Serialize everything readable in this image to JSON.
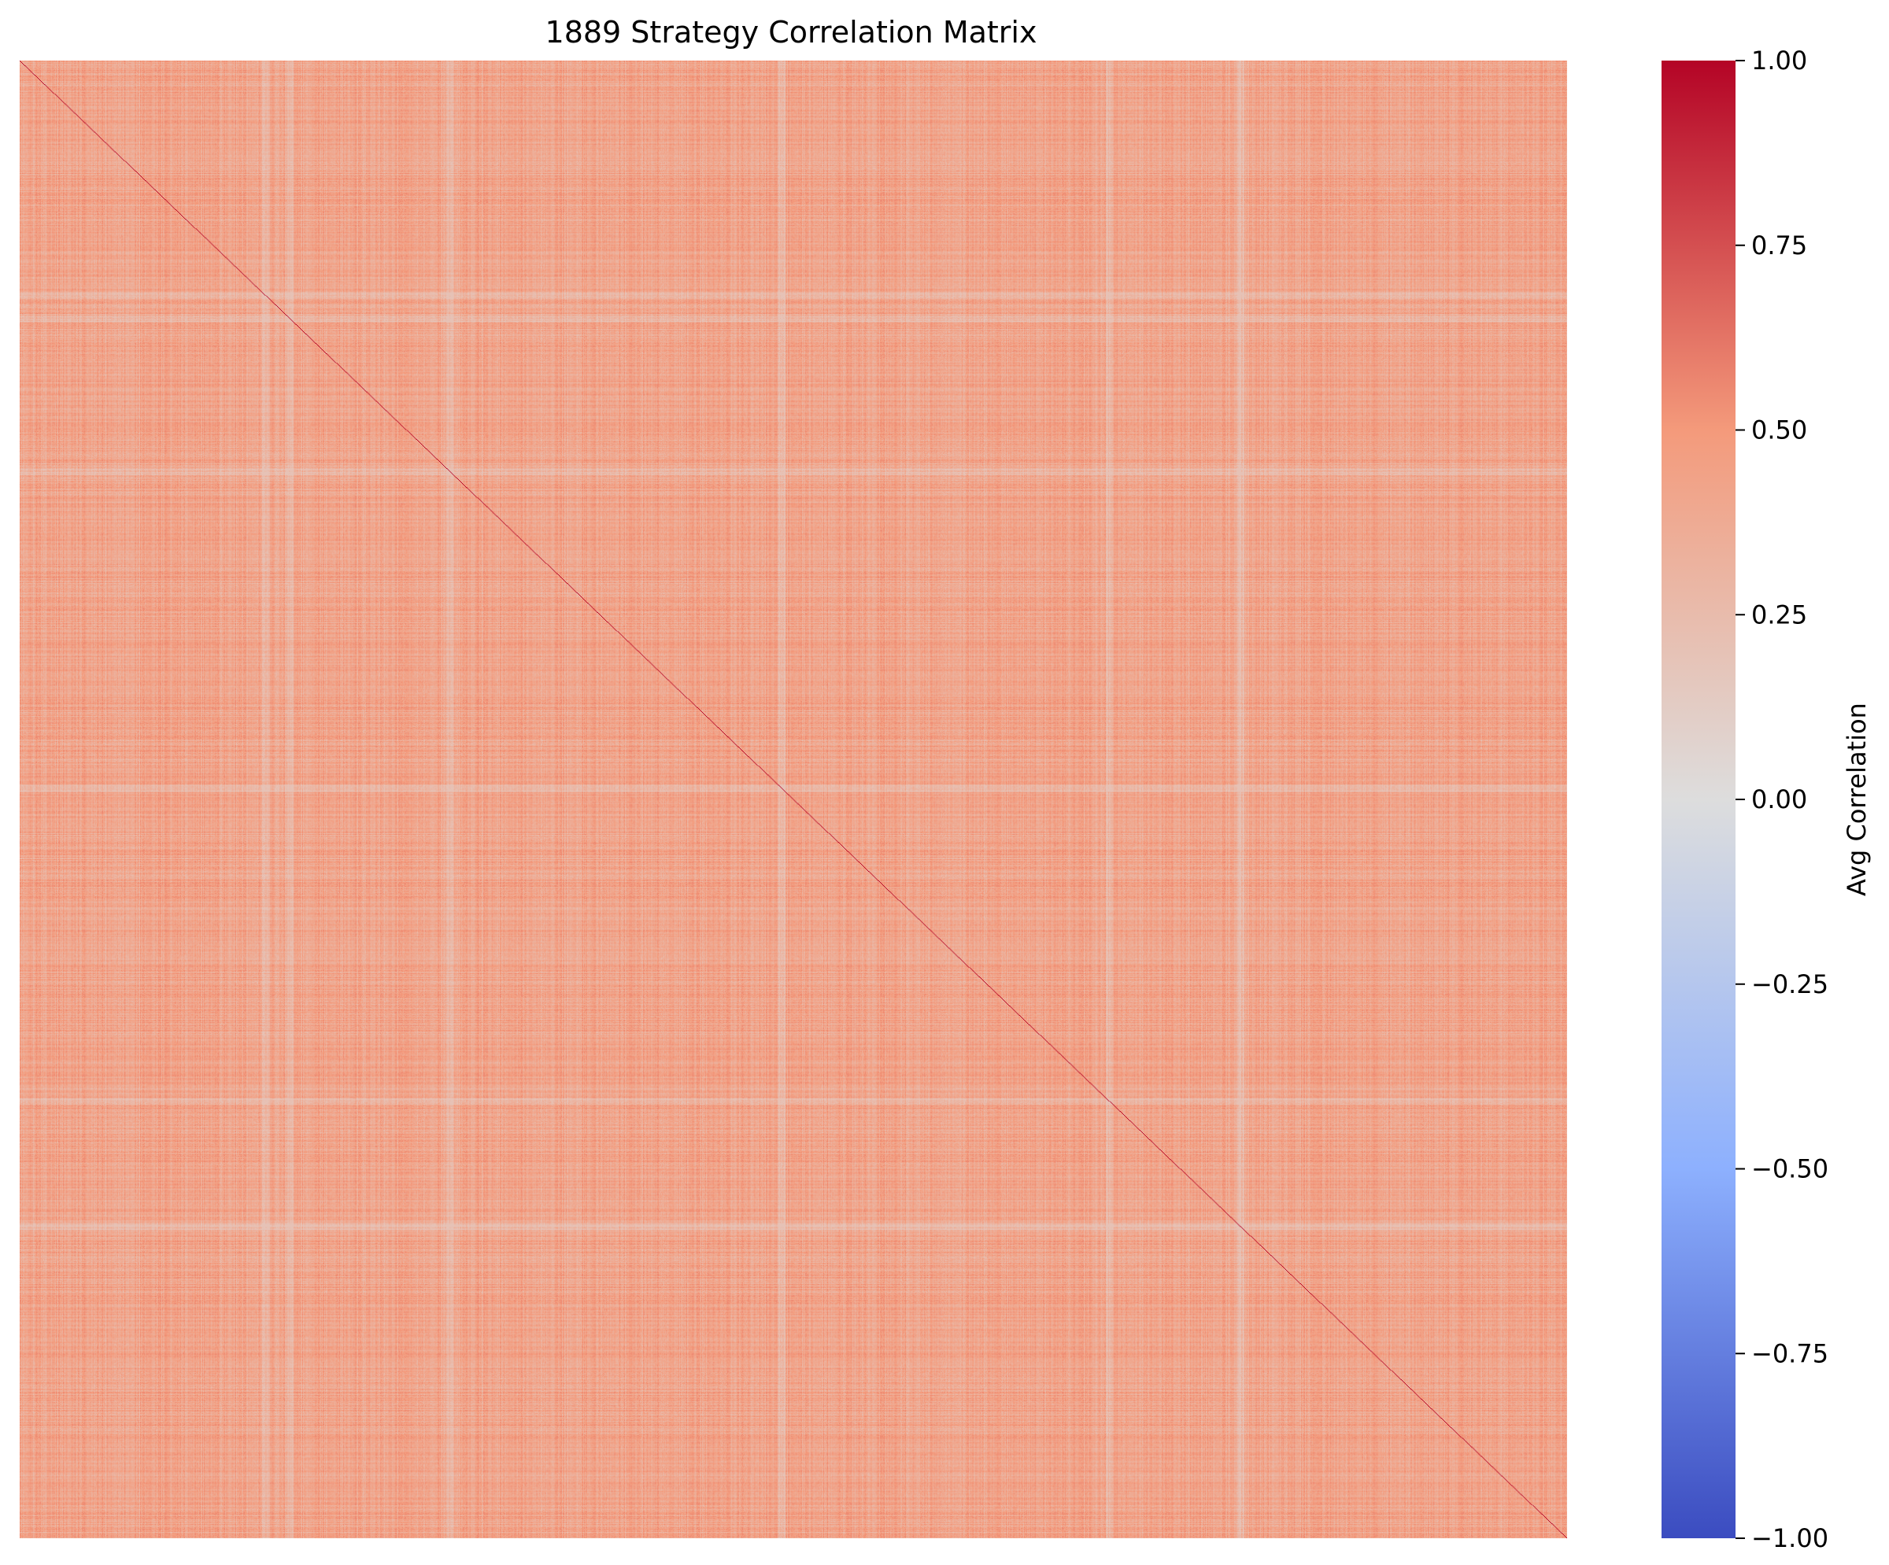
{
  "chart_data": {
    "type": "heatmap",
    "title": "1889 Strategy Correlation Matrix",
    "n_strategies": 1889,
    "value_range": [
      -1.0,
      1.0
    ],
    "diagonal_value": 1.0,
    "typical_off_diagonal_range": [
      0.2,
      0.55
    ],
    "typical_off_diagonal_mean": 0.42,
    "lighter_bands_at_index": [
      300,
      330,
      525,
      930,
      1330,
      1490
    ],
    "lighter_band_mean": 0.28,
    "colormap": "coolwarm",
    "colormap_stops": [
      {
        "value": -1.0,
        "color": "#3b4cc0"
      },
      {
        "value": -0.5,
        "color": "#8db0fe"
      },
      {
        "value": 0.0,
        "color": "#dddddd"
      },
      {
        "value": 0.5,
        "color": "#f49a7b"
      },
      {
        "value": 1.0,
        "color": "#b40426"
      }
    ],
    "x_tick_labels": [],
    "y_tick_labels": [],
    "colorbar": {
      "label": "Avg Correlation",
      "ticks": [
        1.0,
        0.75,
        0.5,
        0.25,
        0.0,
        -0.25,
        -0.5,
        -0.75,
        -1.0
      ],
      "tick_labels": [
        "1.00",
        "0.75",
        "0.50",
        "0.25",
        "0.00",
        "−0.25",
        "−0.50",
        "−0.75",
        "−1.00"
      ]
    }
  }
}
